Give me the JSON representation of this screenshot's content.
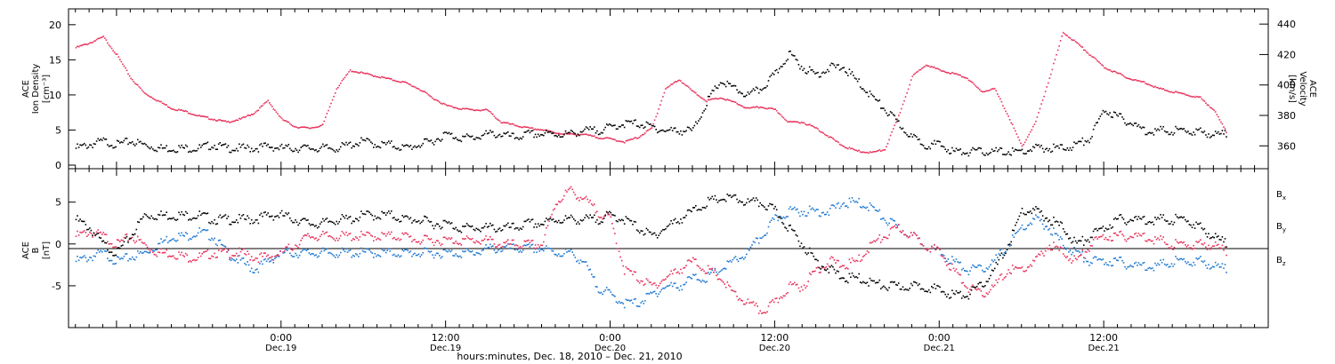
{
  "colors": {
    "black": "#000000",
    "pink": "#e8305a",
    "blue": "#1f78d1"
  },
  "chart_data": [
    {
      "type": "scatter",
      "panel": "top",
      "ylabel_left_lines": [
        "ACE",
        "Ion Density",
        "[cm⁻³]"
      ],
      "ylabel_right_lines": [
        "ACE",
        "Velocity",
        "[km/s]"
      ],
      "ylim_left": [
        0,
        22
      ],
      "yticks_left": [
        "0",
        "5",
        "10",
        "15",
        "20"
      ],
      "ylim_right": [
        345,
        450
      ],
      "yticks_right": [
        "360",
        "380",
        "400",
        "420",
        "440"
      ],
      "x_unit": "hours from 2010-12-18 00:00",
      "xlim": [
        8.5,
        96
      ],
      "series": [
        {
          "color_key": "black",
          "axis": "left",
          "x": [
            9,
            10,
            11,
            12,
            13,
            14,
            15,
            16,
            17,
            18,
            19,
            20,
            21,
            22,
            23,
            24,
            25,
            26,
            27,
            28,
            29,
            30,
            31,
            32,
            33,
            34,
            35,
            36,
            37,
            38,
            39,
            40,
            41,
            42,
            43,
            44,
            45,
            46,
            47,
            48,
            49,
            50,
            51,
            52,
            53,
            54,
            55,
            56,
            57,
            58,
            59,
            60,
            61,
            62,
            63,
            64,
            65,
            66,
            67,
            68,
            69,
            70,
            71,
            72,
            73,
            74,
            75,
            76,
            77,
            78,
            79,
            80,
            81,
            82,
            83,
            84,
            85,
            86,
            87,
            88,
            89,
            90,
            91,
            92,
            93
          ],
          "y": [
            2.5,
            3,
            3.5,
            3,
            3.5,
            3,
            2.5,
            2.5,
            2.5,
            2.5,
            3,
            2.5,
            2.5,
            2.5,
            2.8,
            2.5,
            2.5,
            2.5,
            2.5,
            2.5,
            3,
            3.5,
            3,
            3,
            2.5,
            3,
            3.5,
            4.5,
            4,
            4,
            4.5,
            4.5,
            4,
            4.5,
            4.5,
            4.5,
            4.5,
            5,
            5,
            5.5,
            6,
            6,
            5.5,
            5,
            5,
            5,
            9,
            12,
            11,
            10,
            11,
            13,
            16,
            14,
            13,
            14,
            14,
            12,
            10,
            8,
            6,
            4,
            3,
            3,
            2,
            2,
            2,
            2,
            2,
            2,
            2.5,
            2.5,
            2.5,
            3,
            4,
            8,
            7,
            6,
            5,
            5,
            5,
            5,
            4.8,
            4.5,
            4.5
          ]
        },
        {
          "color_key": "pink",
          "axis": "right",
          "x": [
            9,
            10,
            11,
            12,
            13,
            14,
            15,
            16,
            17,
            18,
            19,
            20,
            21,
            22,
            23,
            24,
            25,
            26,
            27,
            28,
            29,
            30,
            31,
            32,
            33,
            34,
            35,
            36,
            37,
            38,
            39,
            40,
            41,
            42,
            43,
            44,
            45,
            46,
            47,
            48,
            49,
            50,
            51,
            52,
            53,
            54,
            55,
            56,
            57,
            58,
            59,
            60,
            61,
            62,
            63,
            64,
            65,
            66,
            67,
            68,
            69,
            70,
            71,
            72,
            73,
            74,
            75,
            76,
            77,
            78,
            79,
            80,
            81,
            82,
            83,
            84,
            85,
            86,
            87,
            88,
            89,
            90,
            91,
            92,
            93
          ],
          "y": [
            425,
            428,
            432,
            420,
            405,
            395,
            390,
            385,
            383,
            380,
            378,
            376,
            378,
            382,
            390,
            378,
            373,
            372,
            374,
            398,
            410,
            408,
            406,
            404,
            402,
            398,
            392,
            387,
            385,
            384,
            384,
            376,
            374,
            372,
            371,
            369,
            368,
            368,
            366,
            365,
            363,
            366,
            372,
            398,
            404,
            396,
            390,
            392,
            389,
            385,
            386,
            384,
            376,
            376,
            372,
            366,
            360,
            357,
            356,
            358,
            380,
            406,
            414,
            410,
            408,
            405,
            396,
            398,
            380,
            360,
            376,
            405,
            435,
            428,
            420,
            412,
            408,
            404,
            402,
            398,
            396,
            394,
            392,
            384,
            368
          ]
        }
      ]
    },
    {
      "type": "scatter",
      "panel": "bottom",
      "ylabel_lines": [
        "ACE",
        "B",
        "[nT]"
      ],
      "ylim": [
        -10,
        9
      ],
      "yticks": [
        "-5",
        "0",
        "5"
      ],
      "x_unit": "hours from 2010-12-18 00:00",
      "xlim": [
        8.5,
        96
      ],
      "series": [
        {
          "name": "Bx",
          "color_key": "black",
          "x": [
            9,
            10,
            11,
            12,
            13,
            14,
            15,
            16,
            17,
            18,
            19,
            20,
            21,
            22,
            23,
            24,
            25,
            26,
            27,
            28,
            29,
            30,
            31,
            32,
            33,
            34,
            35,
            36,
            37,
            38,
            39,
            40,
            41,
            42,
            43,
            44,
            45,
            46,
            47,
            48,
            49,
            50,
            51,
            52,
            53,
            54,
            55,
            56,
            57,
            58,
            59,
            60,
            61,
            62,
            63,
            64,
            65,
            66,
            67,
            68,
            69,
            70,
            71,
            72,
            73,
            74,
            75,
            76,
            77,
            78,
            79,
            80,
            81,
            82,
            83,
            84,
            85,
            86,
            87,
            88,
            89,
            90,
            91,
            92,
            93
          ],
          "y": [
            3,
            2,
            0,
            -1,
            1,
            3.5,
            3.5,
            3.5,
            3.5,
            3.5,
            3,
            3,
            3,
            3,
            3.5,
            3.5,
            3,
            2.5,
            2.5,
            3,
            3,
            3.5,
            3.5,
            3.5,
            3,
            3,
            2.5,
            2.5,
            2,
            2,
            2,
            2,
            2,
            2.5,
            2.5,
            3,
            3,
            3,
            3,
            3.5,
            3,
            2,
            1,
            2,
            3,
            4,
            5,
            5.5,
            5.5,
            5,
            5,
            4,
            2,
            0,
            -2,
            -3,
            -4,
            -4,
            -4.5,
            -5,
            -5,
            -5,
            -5,
            -5.5,
            -6,
            -6,
            -5,
            -3,
            0,
            4,
            4,
            3,
            2,
            0,
            1,
            2,
            3,
            3,
            3,
            3,
            3,
            3,
            2,
            1,
            0
          ]
        },
        {
          "name": "By",
          "color_key": "blue",
          "x": [
            9,
            10,
            11,
            12,
            13,
            14,
            15,
            16,
            17,
            18,
            19,
            20,
            21,
            22,
            23,
            24,
            25,
            26,
            27,
            28,
            29,
            30,
            31,
            32,
            33,
            34,
            35,
            36,
            37,
            38,
            39,
            40,
            41,
            42,
            43,
            44,
            45,
            46,
            47,
            48,
            49,
            50,
            51,
            52,
            53,
            54,
            55,
            56,
            57,
            58,
            59,
            60,
            61,
            62,
            63,
            64,
            65,
            66,
            67,
            68,
            69,
            70,
            71,
            72,
            73,
            74,
            75,
            76,
            77,
            78,
            79,
            80,
            81,
            82,
            83,
            84,
            85,
            86,
            87,
            88,
            89,
            90,
            91,
            92,
            93
          ],
          "y": [
            -2,
            -1.5,
            -1,
            -2,
            -1.5,
            -1,
            0,
            1,
            1,
            1.5,
            1,
            -1,
            -2,
            -3,
            -2,
            -1,
            -1,
            -1,
            -1,
            -1,
            -1,
            -1,
            -1,
            -1,
            -1,
            -1,
            -1,
            -1,
            -1,
            -1,
            -0.5,
            -0.5,
            -0.5,
            -0.5,
            -0.5,
            -1,
            -1,
            -2,
            -5,
            -6,
            -7,
            -7,
            -6,
            -5,
            -5,
            -4,
            -4,
            -3,
            -2,
            -1,
            1,
            3,
            4,
            4,
            4,
            4,
            5,
            5,
            4.5,
            3,
            2,
            1,
            0,
            -1,
            -2,
            -3,
            -3,
            -2,
            0,
            2,
            3,
            2,
            0,
            -1,
            -2,
            -2,
            -2,
            -2.5,
            -2.5,
            -2.5,
            -2,
            -2,
            -2,
            -2.5,
            -3
          ]
        },
        {
          "name": "Bz",
          "color_key": "pink",
          "x": [
            9,
            10,
            11,
            12,
            13,
            14,
            15,
            16,
            17,
            18,
            19,
            20,
            21,
            22,
            23,
            24,
            25,
            26,
            27,
            28,
            29,
            30,
            31,
            32,
            33,
            34,
            35,
            36,
            37,
            38,
            39,
            40,
            41,
            42,
            43,
            44,
            45,
            46,
            47,
            48,
            49,
            50,
            51,
            52,
            53,
            54,
            55,
            56,
            57,
            58,
            59,
            60,
            61,
            62,
            63,
            64,
            65,
            66,
            67,
            68,
            69,
            70,
            71,
            72,
            73,
            74,
            75,
            76,
            77,
            78,
            79,
            80,
            81,
            82,
            83,
            84,
            85,
            86,
            87,
            88,
            89,
            90,
            91,
            92,
            93
          ],
          "y": [
            1,
            1.5,
            1,
            0,
            1,
            0,
            -1,
            -1,
            -1.5,
            -1.5,
            -1,
            -1,
            -1,
            -1.5,
            -1.5,
            -1,
            0,
            1,
            1,
            1,
            1,
            1,
            1,
            1,
            1,
            0.5,
            0.5,
            0.5,
            0.5,
            0.5,
            0.5,
            0,
            0,
            0,
            0,
            5,
            6.5,
            5.5,
            4,
            3,
            -3,
            -4,
            -5,
            -4,
            -3,
            -2,
            -3,
            -4,
            -6,
            -7,
            -8,
            -7,
            -5,
            -5,
            -3,
            -2,
            -2.5,
            -2,
            0,
            1,
            2,
            1,
            0,
            -1,
            -3,
            -5,
            -6,
            -5,
            -3,
            -3,
            -2,
            0,
            -1,
            -2,
            0,
            1,
            1,
            1,
            1,
            0.5,
            0,
            0,
            0,
            0,
            -1
          ]
        }
      ]
    }
  ],
  "legend": {
    "items": [
      {
        "label": "B",
        "sub": "x",
        "color_key": "black"
      },
      {
        "label": "B",
        "sub": "y",
        "color_key": "blue"
      },
      {
        "label": "B",
        "sub": "z",
        "color_key": "pink"
      }
    ]
  },
  "x_axis": {
    "ticks": [
      {
        "hour": 24,
        "time": "0:00",
        "day": "Dec.19"
      },
      {
        "hour": 36,
        "time": "12:00",
        "day": "Dec.19"
      },
      {
        "hour": 48,
        "time": "0:00",
        "day": "Dec.20"
      },
      {
        "hour": 60,
        "time": "12:00",
        "day": "Dec.20"
      },
      {
        "hour": 72,
        "time": "0:00",
        "day": "Dec.21"
      },
      {
        "hour": 84,
        "time": "12:00",
        "day": "Dec.21"
      }
    ],
    "xlabel": "hours:minutes, Dec. 18, 2010 – Dec. 21, 2010"
  }
}
